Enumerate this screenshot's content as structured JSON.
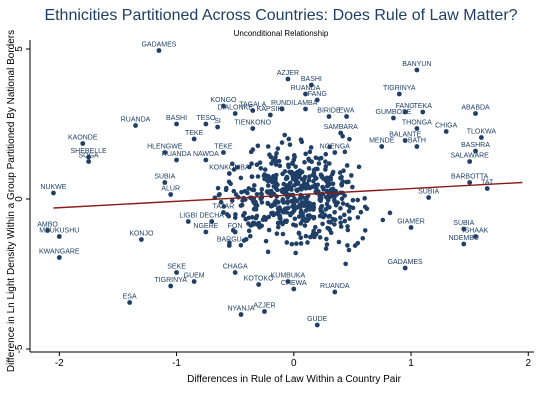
{
  "chart_data": {
    "type": "scatter",
    "title": "Ethnicities Partitioned Across Countries: Does Rule of Law Matter?",
    "subtitle": "Unconditional Relationship",
    "xlabel": "Differences in Rule of Law Within a Country Pair",
    "ylabel": "Difference in Ln Light Density Within a Group Partitioned By National Borders",
    "xlim": [
      -2.25,
      2.1
    ],
    "ylim": [
      -5.1,
      5.3
    ],
    "xticks": [
      -2,
      -1,
      0,
      1,
      2
    ],
    "yticks": [
      -5,
      0,
      5
    ],
    "xtick_labels": [
      "-2",
      "-1",
      "0",
      "1",
      "2"
    ],
    "ytick_labels": [
      "-5",
      "0",
      "5"
    ],
    "grid": false,
    "colors": {
      "points": "#1f3f66",
      "labels": "#1f3f66",
      "fit_line": "#8b1a1a",
      "axis": "#000000"
    },
    "fit_line": {
      "x": [
        -2.05,
        1.95
      ],
      "y": [
        -0.3,
        0.55
      ]
    },
    "labeled_points": [
      {
        "label": "GADAMES",
        "x": -1.15,
        "y": 4.95
      },
      {
        "label": "BANYUN",
        "x": 1.05,
        "y": 4.3
      },
      {
        "label": "AZJER",
        "x": -0.05,
        "y": 4.0
      },
      {
        "label": "BASHI",
        "x": 0.15,
        "y": 3.8
      },
      {
        "label": "RUANDA",
        "x": 0.1,
        "y": 3.5
      },
      {
        "label": "FANG",
        "x": 0.2,
        "y": 3.3
      },
      {
        "label": "TIGRINYA",
        "x": 0.9,
        "y": 3.5
      },
      {
        "label": "KONGO",
        "x": -0.6,
        "y": 3.1
      },
      {
        "label": "RUNDI",
        "x": -0.1,
        "y": 3.0
      },
      {
        "label": "LAMBA",
        "x": 0.1,
        "y": 3.0
      },
      {
        "label": "DIALONKE",
        "x": -0.5,
        "y": 2.85
      },
      {
        "label": "TAGALA",
        "x": -0.35,
        "y": 2.95
      },
      {
        "label": "KAPSIKI",
        "x": -0.2,
        "y": 2.8
      },
      {
        "label": "FANG",
        "x": 0.95,
        "y": 2.9
      },
      {
        "label": "TEKA",
        "x": 1.1,
        "y": 2.9
      },
      {
        "label": "ABABDA",
        "x": 1.55,
        "y": 2.85
      },
      {
        "label": "BIRIDE",
        "x": 0.3,
        "y": 2.75
      },
      {
        "label": "EWA",
        "x": 0.45,
        "y": 2.75
      },
      {
        "label": "GUMBOSE",
        "x": 0.85,
        "y": 2.7
      },
      {
        "label": "RUANDA",
        "x": -1.35,
        "y": 2.45
      },
      {
        "label": "BASHI",
        "x": -1.0,
        "y": 2.5
      },
      {
        "label": "TESO",
        "x": -0.75,
        "y": 2.5
      },
      {
        "label": "SI",
        "x": -0.65,
        "y": 2.4
      },
      {
        "label": "THONGA",
        "x": 1.05,
        "y": 2.35
      },
      {
        "label": "CHIGA",
        "x": 1.3,
        "y": 2.25
      },
      {
        "label": "TIENKONO",
        "x": -0.35,
        "y": 2.35
      },
      {
        "label": "SAMBARA",
        "x": 0.4,
        "y": 2.2
      },
      {
        "label": "TLOKWA",
        "x": 1.6,
        "y": 2.05
      },
      {
        "label": "KAONDE",
        "x": -1.8,
        "y": 1.85
      },
      {
        "label": "TEKE",
        "x": -0.85,
        "y": 2.0
      },
      {
        "label": "BALANTE",
        "x": 0.95,
        "y": 1.95
      },
      {
        "label": "MENDE",
        "x": 0.75,
        "y": 1.75
      },
      {
        "label": "BATH",
        "x": 1.05,
        "y": 1.75
      },
      {
        "label": "BASHRA",
        "x": 1.55,
        "y": 1.6
      },
      {
        "label": "HLENGWE",
        "x": -1.1,
        "y": 1.55
      },
      {
        "label": "TEKE",
        "x": -0.6,
        "y": 1.55
      },
      {
        "label": "NGENGA",
        "x": 0.35,
        "y": 1.55
      },
      {
        "label": "SHEBELLE",
        "x": -1.75,
        "y": 1.4
      },
      {
        "label": "SOGA",
        "x": -1.75,
        "y": 1.25
      },
      {
        "label": "RUANDA",
        "x": -1.0,
        "y": 1.3
      },
      {
        "label": "NAWDA",
        "x": -0.75,
        "y": 1.3
      },
      {
        "label": "SALAWARE",
        "x": 1.5,
        "y": 1.25
      },
      {
        "label": "KONKOMBA",
        "x": -0.55,
        "y": 0.85
      },
      {
        "label": "SUBIA",
        "x": -1.1,
        "y": 0.55
      },
      {
        "label": "ALUR",
        "x": -1.05,
        "y": 0.15
      },
      {
        "label": "BARBOTTA",
        "x": 1.5,
        "y": 0.55
      },
      {
        "label": "TAT",
        "x": 1.65,
        "y": 0.35
      },
      {
        "label": "NUKWE",
        "x": -2.05,
        "y": 0.2
      },
      {
        "label": "SUBIA",
        "x": 1.15,
        "y": 0.05
      },
      {
        "label": "TAJAR",
        "x": -0.6,
        "y": -0.45
      },
      {
        "label": "LIGBI",
        "x": -0.9,
        "y": -0.75
      },
      {
        "label": "DECHA",
        "x": -0.7,
        "y": -0.75
      },
      {
        "label": "NGERE",
        "x": -0.75,
        "y": -1.1
      },
      {
        "label": "FON",
        "x": -0.5,
        "y": -1.1
      },
      {
        "label": "SUBIA",
        "x": 1.45,
        "y": -1.0
      },
      {
        "label": "GIAMER",
        "x": 1.0,
        "y": -0.95
      },
      {
        "label": "AMBO",
        "x": -2.1,
        "y": -1.05
      },
      {
        "label": "MBUKUSHU",
        "x": -2.0,
        "y": -1.25
      },
      {
        "label": "ISHAAK",
        "x": 1.55,
        "y": -1.25
      },
      {
        "label": "KONJO",
        "x": -1.3,
        "y": -1.35
      },
      {
        "label": "NDEMBU",
        "x": 1.45,
        "y": -1.5
      },
      {
        "label": "BARGU",
        "x": -0.55,
        "y": -1.55
      },
      {
        "label": "KWANGARE",
        "x": -2.0,
        "y": -1.95
      },
      {
        "label": "SEKE",
        "x": -1.0,
        "y": -2.45
      },
      {
        "label": "GUEM",
        "x": -0.85,
        "y": -2.75
      },
      {
        "label": "TIGRINYA",
        "x": -1.05,
        "y": -2.9
      },
      {
        "label": "CHAGA",
        "x": -0.5,
        "y": -2.45
      },
      {
        "label": "KOTOKO",
        "x": -0.3,
        "y": -2.85
      },
      {
        "label": "KUMBUKA",
        "x": -0.05,
        "y": -2.75
      },
      {
        "label": "CHEWA",
        "x": 0.0,
        "y": -3.0
      },
      {
        "label": "RUANDA",
        "x": 0.35,
        "y": -3.1
      },
      {
        "label": "GADAMES",
        "x": 0.95,
        "y": -2.3
      },
      {
        "label": "ESA",
        "x": -1.4,
        "y": -3.45
      },
      {
        "label": "NYANJA",
        "x": -0.45,
        "y": -3.85
      },
      {
        "label": "AZJER",
        "x": -0.25,
        "y": -3.75
      },
      {
        "label": "GUDE",
        "x": 0.2,
        "y": -4.2
      }
    ]
  }
}
